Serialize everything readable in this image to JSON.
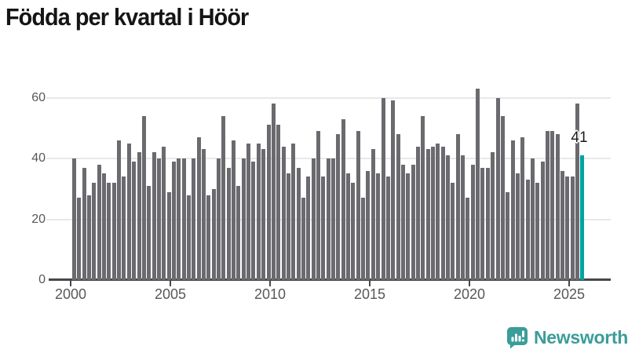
{
  "title": "Födda per kvartal i Höör",
  "chart_data": {
    "type": "bar",
    "title": "Födda per kvartal i Höör",
    "x_axis": {
      "tick_labels": [
        "2000",
        "2005",
        "2010",
        "2015",
        "2020",
        "2025"
      ],
      "frequency": "quarterly",
      "range": "2000-Q1 to 2025-Q3"
    },
    "y_axis": {
      "tick_labels": [
        "0",
        "20",
        "40",
        "60"
      ],
      "ticks": [
        0,
        20,
        40,
        60
      ],
      "lim": [
        0,
        65
      ],
      "gridlines": true
    },
    "series": [
      {
        "name": "Födda per kvartal",
        "start": "2000-Q1",
        "values": [
          40,
          27,
          37,
          28,
          32,
          38,
          35,
          32,
          32,
          46,
          34,
          45,
          39,
          42,
          54,
          31,
          42,
          40,
          44,
          29,
          39,
          40,
          40,
          28,
          40,
          47,
          43,
          28,
          30,
          40,
          54,
          37,
          46,
          31,
          40,
          45,
          39,
          45,
          43,
          51,
          58,
          51,
          44,
          35,
          45,
          37,
          27,
          34,
          40,
          49,
          34,
          40,
          40,
          48,
          53,
          35,
          32,
          49,
          27,
          36,
          43,
          35,
          60,
          34,
          59,
          48,
          38,
          35,
          38,
          44,
          54,
          43,
          44,
          45,
          44,
          41,
          32,
          48,
          41,
          27,
          38,
          63,
          37,
          37,
          42,
          60,
          54,
          29,
          46,
          35,
          47,
          33,
          40,
          32,
          39,
          49,
          49,
          48,
          36,
          34,
          34,
          58,
          41
        ]
      }
    ],
    "highlight": {
      "index": 102,
      "period": "2025-Q3",
      "value": 41,
      "label": "41"
    },
    "colors": {
      "bar": "#6a6a6f",
      "highlight": "#00a3a1",
      "grid": "#e8e8e8",
      "axis": "#47474a",
      "tick_label": "#58585c",
      "title": "#151515"
    },
    "legend": "none"
  },
  "footer": {
    "brand_label": "Newsworthy",
    "brand_color": "#3a9d9a",
    "logo_icon": "newsworthy-bar-chart-speech-bubble-icon"
  }
}
